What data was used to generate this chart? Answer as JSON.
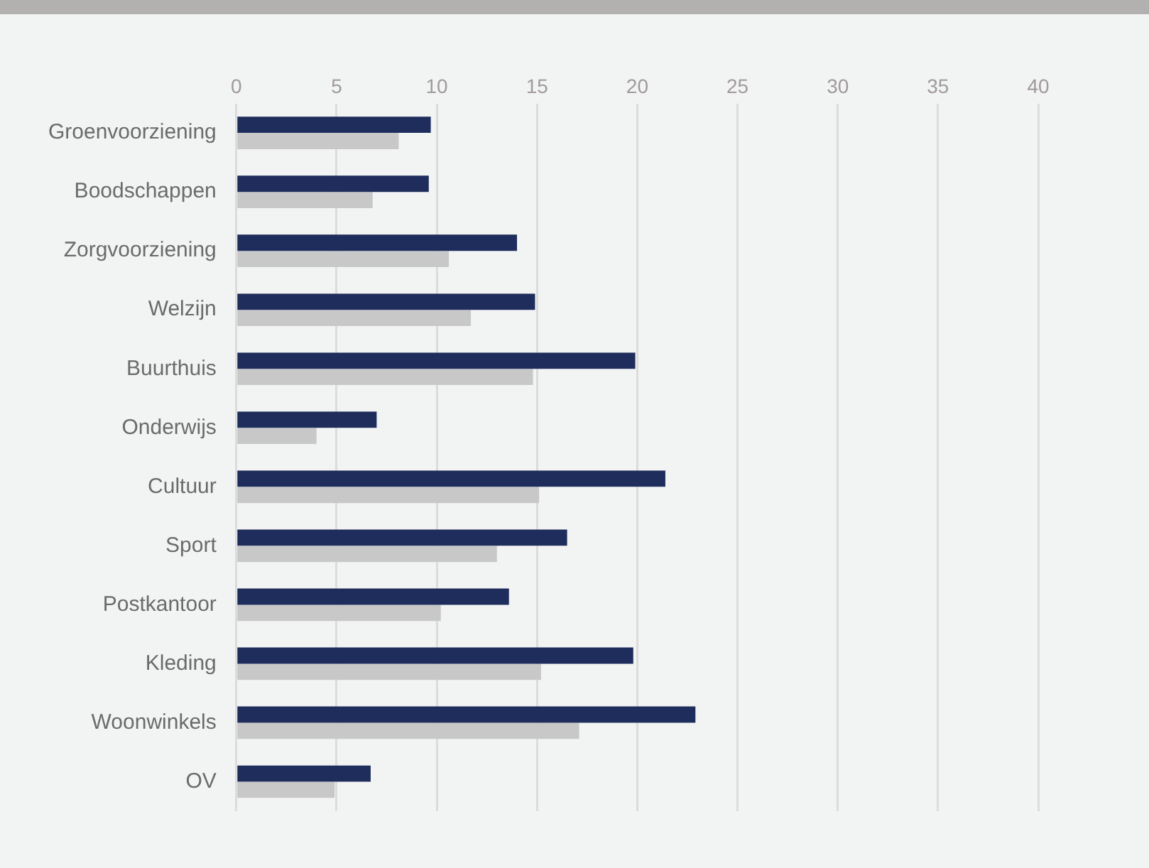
{
  "chart_data": {
    "type": "bar",
    "orientation": "horizontal",
    "categories": [
      "Groenvoorziening",
      "Boodschappen",
      "Zorgvoorziening",
      "Welzijn",
      "Buurthuis",
      "Onderwijs",
      "Cultuur",
      "Sport",
      "Postkantoor",
      "Kleding",
      "Woonwinkels",
      "OV"
    ],
    "series": [
      {
        "color": "#1f2d5c",
        "values": [
          9.7,
          9.6,
          14.0,
          14.9,
          19.9,
          7.0,
          21.4,
          16.5,
          13.6,
          19.8,
          22.9,
          6.7
        ]
      },
      {
        "color": "#c8c8c8",
        "values": [
          8.1,
          6.8,
          10.6,
          11.7,
          14.8,
          4.0,
          15.1,
          13.0,
          10.2,
          15.2,
          17.1,
          4.9
        ]
      }
    ],
    "xlim": [
      0,
      40
    ],
    "xticks": [
      0,
      5,
      10,
      15,
      20,
      25,
      30,
      35,
      40
    ],
    "grid": "x",
    "legend": false
  }
}
